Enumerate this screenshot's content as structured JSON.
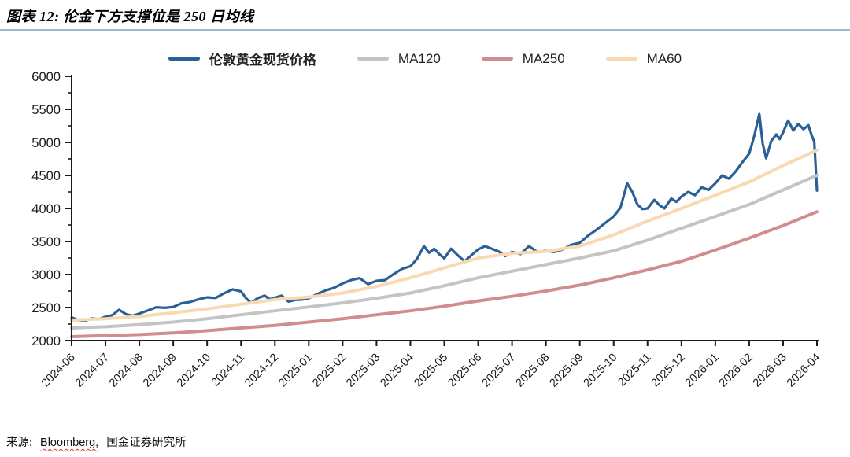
{
  "figure": {
    "title": "图表 12: 伦金下方支撑位是 250 日均线",
    "source_prefix": "来源:",
    "source_bloomberg": "Bloomberg,",
    "source_suffix": "国金证券研究所"
  },
  "colors": {
    "gold": "#2A6096",
    "ma120": "#C4C4C4",
    "ma250": "#D18D8D",
    "ma60": "#F9D9B2",
    "axis": "#1a1a1a",
    "tick_label": "#1a1a1a",
    "title_rule": "#9FB9CA",
    "spellcheck_underline": "#cc3333"
  },
  "chart_data": {
    "type": "line",
    "title": "",
    "xlabel": "",
    "ylabel": "",
    "ylim": [
      2000,
      6000
    ],
    "y_ticks": [
      2000,
      2500,
      3000,
      3500,
      4000,
      4500,
      5000,
      5500,
      6000
    ],
    "y_minor_step": 250,
    "grid": false,
    "legend_position": "top-center",
    "x_tick_labels": [
      "2024-06",
      "2024-07",
      "2024-08",
      "2024-09",
      "2024-10",
      "2024-11",
      "2024-12",
      "2025-01",
      "2025-02",
      "2025-03",
      "2025-04",
      "2025-05",
      "2025-06",
      "2025-07",
      "2025-08",
      "2025-09",
      "2025-10",
      "2025-11",
      "2025-12",
      "2026-01",
      "2026-02",
      "2026-03",
      "2026-04"
    ],
    "legend": [
      {
        "label": "伦敦黄金现货价格",
        "series": "gold"
      },
      {
        "label": "MA120",
        "series": "ma120"
      },
      {
        "label": "MA250",
        "series": "ma250"
      },
      {
        "label": "MA60",
        "series": "ma60"
      }
    ],
    "draw_order": [
      "gold",
      "ma120",
      "ma250",
      "ma60"
    ],
    "line_widths": {
      "gold": 3.2,
      "ma120": 4,
      "ma250": 4,
      "ma60": 4
    },
    "series": [
      {
        "id": "gold",
        "name": "伦敦黄金现货价格",
        "points": [
          [
            0.0,
            2350
          ],
          [
            0.2,
            2310
          ],
          [
            0.4,
            2300
          ],
          [
            0.6,
            2335
          ],
          [
            0.8,
            2325
          ],
          [
            1.0,
            2360
          ],
          [
            1.2,
            2385
          ],
          [
            1.4,
            2465
          ],
          [
            1.6,
            2400
          ],
          [
            1.8,
            2375
          ],
          [
            2.0,
            2410
          ],
          [
            2.25,
            2455
          ],
          [
            2.5,
            2505
          ],
          [
            2.75,
            2495
          ],
          [
            3.0,
            2510
          ],
          [
            3.25,
            2565
          ],
          [
            3.5,
            2585
          ],
          [
            3.75,
            2625
          ],
          [
            4.0,
            2655
          ],
          [
            4.25,
            2645
          ],
          [
            4.5,
            2715
          ],
          [
            4.75,
            2775
          ],
          [
            5.0,
            2745
          ],
          [
            5.15,
            2640
          ],
          [
            5.3,
            2570
          ],
          [
            5.5,
            2645
          ],
          [
            5.7,
            2680
          ],
          [
            5.85,
            2625
          ],
          [
            6.0,
            2650
          ],
          [
            6.2,
            2680
          ],
          [
            6.4,
            2590
          ],
          [
            6.6,
            2615
          ],
          [
            6.8,
            2620
          ],
          [
            7.0,
            2640
          ],
          [
            7.25,
            2705
          ],
          [
            7.5,
            2760
          ],
          [
            7.75,
            2800
          ],
          [
            8.0,
            2865
          ],
          [
            8.25,
            2915
          ],
          [
            8.5,
            2945
          ],
          [
            8.75,
            2855
          ],
          [
            9.0,
            2905
          ],
          [
            9.25,
            2915
          ],
          [
            9.5,
            3005
          ],
          [
            9.75,
            3085
          ],
          [
            10.0,
            3125
          ],
          [
            10.2,
            3240
          ],
          [
            10.4,
            3430
          ],
          [
            10.55,
            3330
          ],
          [
            10.7,
            3390
          ],
          [
            10.85,
            3310
          ],
          [
            11.0,
            3245
          ],
          [
            11.2,
            3390
          ],
          [
            11.4,
            3290
          ],
          [
            11.6,
            3200
          ],
          [
            11.8,
            3290
          ],
          [
            12.0,
            3380
          ],
          [
            12.2,
            3430
          ],
          [
            12.4,
            3390
          ],
          [
            12.6,
            3350
          ],
          [
            12.8,
            3280
          ],
          [
            13.0,
            3340
          ],
          [
            13.25,
            3310
          ],
          [
            13.5,
            3430
          ],
          [
            13.75,
            3340
          ],
          [
            14.0,
            3360
          ],
          [
            14.25,
            3340
          ],
          [
            14.5,
            3380
          ],
          [
            14.75,
            3450
          ],
          [
            15.0,
            3480
          ],
          [
            15.25,
            3590
          ],
          [
            15.5,
            3680
          ],
          [
            15.75,
            3780
          ],
          [
            16.0,
            3880
          ],
          [
            16.2,
            4010
          ],
          [
            16.4,
            4380
          ],
          [
            16.55,
            4250
          ],
          [
            16.7,
            4060
          ],
          [
            16.85,
            3990
          ],
          [
            17.0,
            4000
          ],
          [
            17.2,
            4130
          ],
          [
            17.35,
            4050
          ],
          [
            17.5,
            4000
          ],
          [
            17.7,
            4150
          ],
          [
            17.85,
            4100
          ],
          [
            18.0,
            4180
          ],
          [
            18.2,
            4250
          ],
          [
            18.4,
            4200
          ],
          [
            18.6,
            4320
          ],
          [
            18.8,
            4280
          ],
          [
            19.0,
            4380
          ],
          [
            19.2,
            4500
          ],
          [
            19.4,
            4450
          ],
          [
            19.6,
            4560
          ],
          [
            19.8,
            4700
          ],
          [
            20.0,
            4830
          ],
          [
            20.15,
            5100
          ],
          [
            20.3,
            5430
          ],
          [
            20.4,
            4980
          ],
          [
            20.5,
            4760
          ],
          [
            20.65,
            5020
          ],
          [
            20.8,
            5120
          ],
          [
            20.9,
            5050
          ],
          [
            21.0,
            5150
          ],
          [
            21.15,
            5330
          ],
          [
            21.3,
            5180
          ],
          [
            21.45,
            5280
          ],
          [
            21.6,
            5200
          ],
          [
            21.75,
            5260
          ],
          [
            21.85,
            5100
          ],
          [
            21.92,
            5010
          ],
          [
            22.0,
            4270
          ]
        ]
      },
      {
        "id": "ma120",
        "name": "MA120",
        "points": [
          [
            0,
            2190
          ],
          [
            1,
            2210
          ],
          [
            2,
            2240
          ],
          [
            3,
            2280
          ],
          [
            4,
            2330
          ],
          [
            5,
            2390
          ],
          [
            6,
            2450
          ],
          [
            7,
            2510
          ],
          [
            8,
            2570
          ],
          [
            9,
            2640
          ],
          [
            10,
            2720
          ],
          [
            11,
            2830
          ],
          [
            12,
            2950
          ],
          [
            13,
            3050
          ],
          [
            14,
            3150
          ],
          [
            15,
            3250
          ],
          [
            16,
            3360
          ],
          [
            17,
            3520
          ],
          [
            18,
            3700
          ],
          [
            19,
            3880
          ],
          [
            20,
            4060
          ],
          [
            21,
            4280
          ],
          [
            22,
            4500
          ]
        ]
      },
      {
        "id": "ma250",
        "name": "MA250",
        "points": [
          [
            0,
            2060
          ],
          [
            1,
            2075
          ],
          [
            2,
            2090
          ],
          [
            3,
            2115
          ],
          [
            4,
            2150
          ],
          [
            5,
            2190
          ],
          [
            6,
            2230
          ],
          [
            7,
            2280
          ],
          [
            8,
            2330
          ],
          [
            9,
            2390
          ],
          [
            10,
            2450
          ],
          [
            11,
            2520
          ],
          [
            12,
            2600
          ],
          [
            13,
            2670
          ],
          [
            14,
            2750
          ],
          [
            15,
            2840
          ],
          [
            16,
            2950
          ],
          [
            17,
            3070
          ],
          [
            18,
            3200
          ],
          [
            19,
            3370
          ],
          [
            20,
            3550
          ],
          [
            21,
            3740
          ],
          [
            22,
            3950
          ]
        ]
      },
      {
        "id": "ma60",
        "name": "MA60",
        "points": [
          [
            0,
            2310
          ],
          [
            1,
            2330
          ],
          [
            2,
            2365
          ],
          [
            3,
            2420
          ],
          [
            4,
            2480
          ],
          [
            5,
            2550
          ],
          [
            6,
            2620
          ],
          [
            7,
            2660
          ],
          [
            8,
            2720
          ],
          [
            9,
            2820
          ],
          [
            10,
            2950
          ],
          [
            11,
            3100
          ],
          [
            12,
            3250
          ],
          [
            13,
            3320
          ],
          [
            14,
            3350
          ],
          [
            15,
            3430
          ],
          [
            16,
            3600
          ],
          [
            17,
            3810
          ],
          [
            18,
            4000
          ],
          [
            19,
            4200
          ],
          [
            20,
            4400
          ],
          [
            21,
            4650
          ],
          [
            22,
            4880
          ]
        ]
      }
    ]
  }
}
